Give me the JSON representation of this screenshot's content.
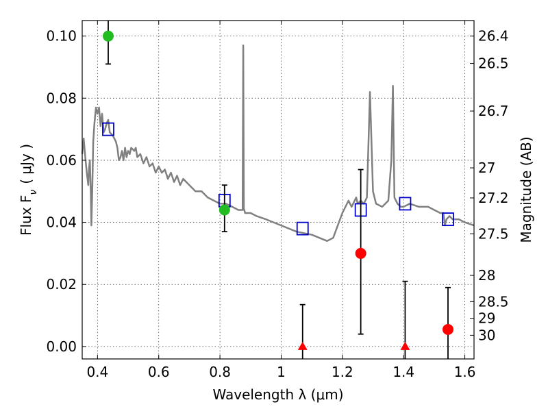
{
  "chart_data": {
    "type": "scatter",
    "xlabel": "Wavelength  λ (μm)",
    "ylabel": "Flux  F",
    "ylabel_sub": "ν",
    "ylabel_unit": "( μJy )",
    "y2label": "Magnitude (AB)",
    "xlim": [
      0.35,
      1.63
    ],
    "ylim": [
      -0.004,
      0.105
    ],
    "grid": true,
    "x_ticks": [
      0.4,
      0.6,
      0.8,
      1.0,
      1.2,
      1.4,
      1.6
    ],
    "x_tick_labels": [
      "0.4",
      "0.6",
      "0.8",
      "1",
      "1.2",
      "1.4",
      "1.6"
    ],
    "y_ticks": [
      0.0,
      0.02,
      0.04,
      0.06,
      0.08,
      0.1
    ],
    "y_tick_labels": [
      "0.00",
      "0.02",
      "0.04",
      "0.06",
      "0.08",
      "0.10"
    ],
    "mag_ticks": [
      26.4,
      26.5,
      26.7,
      27,
      27.2,
      27.5,
      28,
      28.5,
      29,
      30
    ],
    "mag_tick_labels": [
      "26.4",
      "26.5",
      "26.7",
      "27",
      "27.2",
      "27.5",
      "28",
      "28.5",
      "29",
      "30"
    ],
    "colors": {
      "model": "#808080",
      "detection_green": "#22bb22",
      "detection_red": "#ff0000",
      "model_flux": "#0000cc",
      "errorbar": "#000000"
    },
    "model_sed": {
      "x": [
        0.35,
        0.355,
        0.36,
        0.365,
        0.37,
        0.372,
        0.375,
        0.378,
        0.38,
        0.383,
        0.386,
        0.39,
        0.395,
        0.4,
        0.405,
        0.41,
        0.415,
        0.42,
        0.425,
        0.43,
        0.435,
        0.44,
        0.45,
        0.46,
        0.465,
        0.47,
        0.475,
        0.48,
        0.485,
        0.49,
        0.495,
        0.5,
        0.505,
        0.51,
        0.52,
        0.525,
        0.53,
        0.54,
        0.55,
        0.56,
        0.57,
        0.58,
        0.59,
        0.6,
        0.61,
        0.62,
        0.63,
        0.64,
        0.65,
        0.66,
        0.67,
        0.68,
        0.7,
        0.72,
        0.74,
        0.76,
        0.78,
        0.8,
        0.82,
        0.84,
        0.86,
        0.874,
        0.876,
        0.878,
        0.88,
        0.882,
        0.9,
        0.92,
        0.95,
        1.0,
        1.05,
        1.1,
        1.15,
        1.17,
        1.2,
        1.22,
        1.23,
        1.24,
        1.245,
        1.25,
        1.26,
        1.27,
        1.28,
        1.29,
        1.3,
        1.31,
        1.33,
        1.35,
        1.36,
        1.365,
        1.37,
        1.38,
        1.39,
        1.4,
        1.42,
        1.45,
        1.48,
        1.5,
        1.52,
        1.53,
        1.535,
        1.54,
        1.55,
        1.56,
        1.58,
        1.6,
        1.63
      ],
      "y": [
        0.062,
        0.067,
        0.061,
        0.056,
        0.052,
        0.057,
        0.06,
        0.05,
        0.039,
        0.05,
        0.066,
        0.072,
        0.077,
        0.075,
        0.077,
        0.071,
        0.075,
        0.069,
        0.07,
        0.072,
        0.073,
        0.069,
        0.068,
        0.066,
        0.064,
        0.06,
        0.061,
        0.063,
        0.06,
        0.064,
        0.061,
        0.063,
        0.062,
        0.064,
        0.063,
        0.064,
        0.061,
        0.062,
        0.059,
        0.061,
        0.058,
        0.059,
        0.056,
        0.058,
        0.056,
        0.057,
        0.054,
        0.056,
        0.053,
        0.055,
        0.052,
        0.054,
        0.052,
        0.05,
        0.05,
        0.048,
        0.047,
        0.046,
        0.046,
        0.045,
        0.044,
        0.044,
        0.097,
        0.044,
        0.044,
        0.043,
        0.043,
        0.042,
        0.041,
        0.039,
        0.037,
        0.036,
        0.034,
        0.035,
        0.043,
        0.047,
        0.045,
        0.047,
        0.048,
        0.046,
        0.047,
        0.046,
        0.048,
        0.082,
        0.05,
        0.046,
        0.045,
        0.047,
        0.06,
        0.084,
        0.048,
        0.046,
        0.045,
        0.045,
        0.046,
        0.045,
        0.045,
        0.044,
        0.043,
        0.043,
        0.039,
        0.041,
        0.042,
        0.041,
        0.041,
        0.04,
        0.039
      ]
    },
    "model_fluxes": {
      "x": [
        0.435,
        0.815,
        1.07,
        1.26,
        1.405,
        1.545
      ],
      "y": [
        0.07,
        0.047,
        0.038,
        0.044,
        0.046,
        0.041
      ]
    },
    "detections_green": {
      "x": [
        0.435,
        0.815
      ],
      "y": [
        0.1,
        0.044
      ],
      "yerr_low": [
        0.091,
        0.037
      ],
      "yerr_high": [
        0.109,
        0.052
      ]
    },
    "detections_red": {
      "x": [
        1.26,
        1.545
      ],
      "y": [
        0.03,
        0.0055
      ],
      "yerr_low": [
        0.004,
        -0.006
      ],
      "yerr_high": [
        0.057,
        0.019
      ]
    },
    "upper_limits_red": {
      "x": [
        1.07,
        1.405
      ],
      "y": [
        0.0,
        0.0
      ],
      "yerr_low": [
        -0.006,
        -0.006
      ],
      "yerr_high": [
        0.0135,
        0.021
      ]
    }
  }
}
